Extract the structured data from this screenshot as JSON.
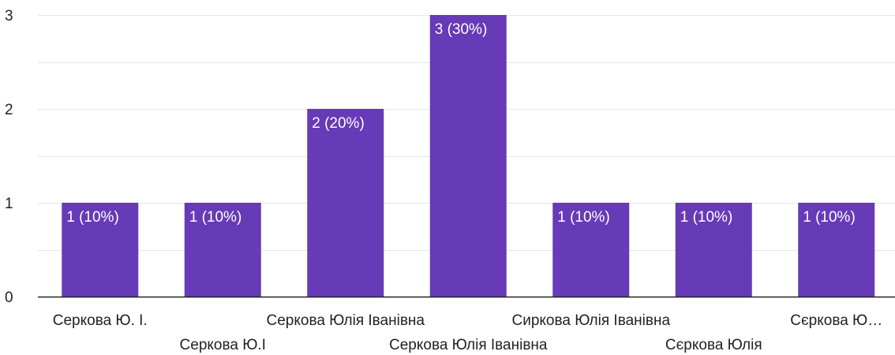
{
  "chart_data": {
    "type": "bar",
    "categories": [
      "Серкова Ю. І.",
      "Серкова Ю.І",
      "Серкова Юлія Іванівна",
      "Серкова Юлія Іванівна",
      "Сиркова Юлія Іванівна",
      "Сєркова Юлія",
      "Сєркова Ю…"
    ],
    "values": [
      1,
      1,
      2,
      3,
      1,
      1,
      1
    ],
    "data_labels": [
      "1 (10%)",
      "1 (10%)",
      "2 (20%)",
      "3 (30%)",
      "1 (10%)",
      "1 (10%)",
      "1 (10%)"
    ],
    "ylim": [
      0,
      3
    ],
    "y_ticks": [
      0,
      1,
      2,
      3
    ],
    "grid": true,
    "colors": {
      "bar": "#673ab7",
      "grid": "#e6e6e6",
      "axis": "#222222",
      "data_label": "#ffffff"
    }
  }
}
